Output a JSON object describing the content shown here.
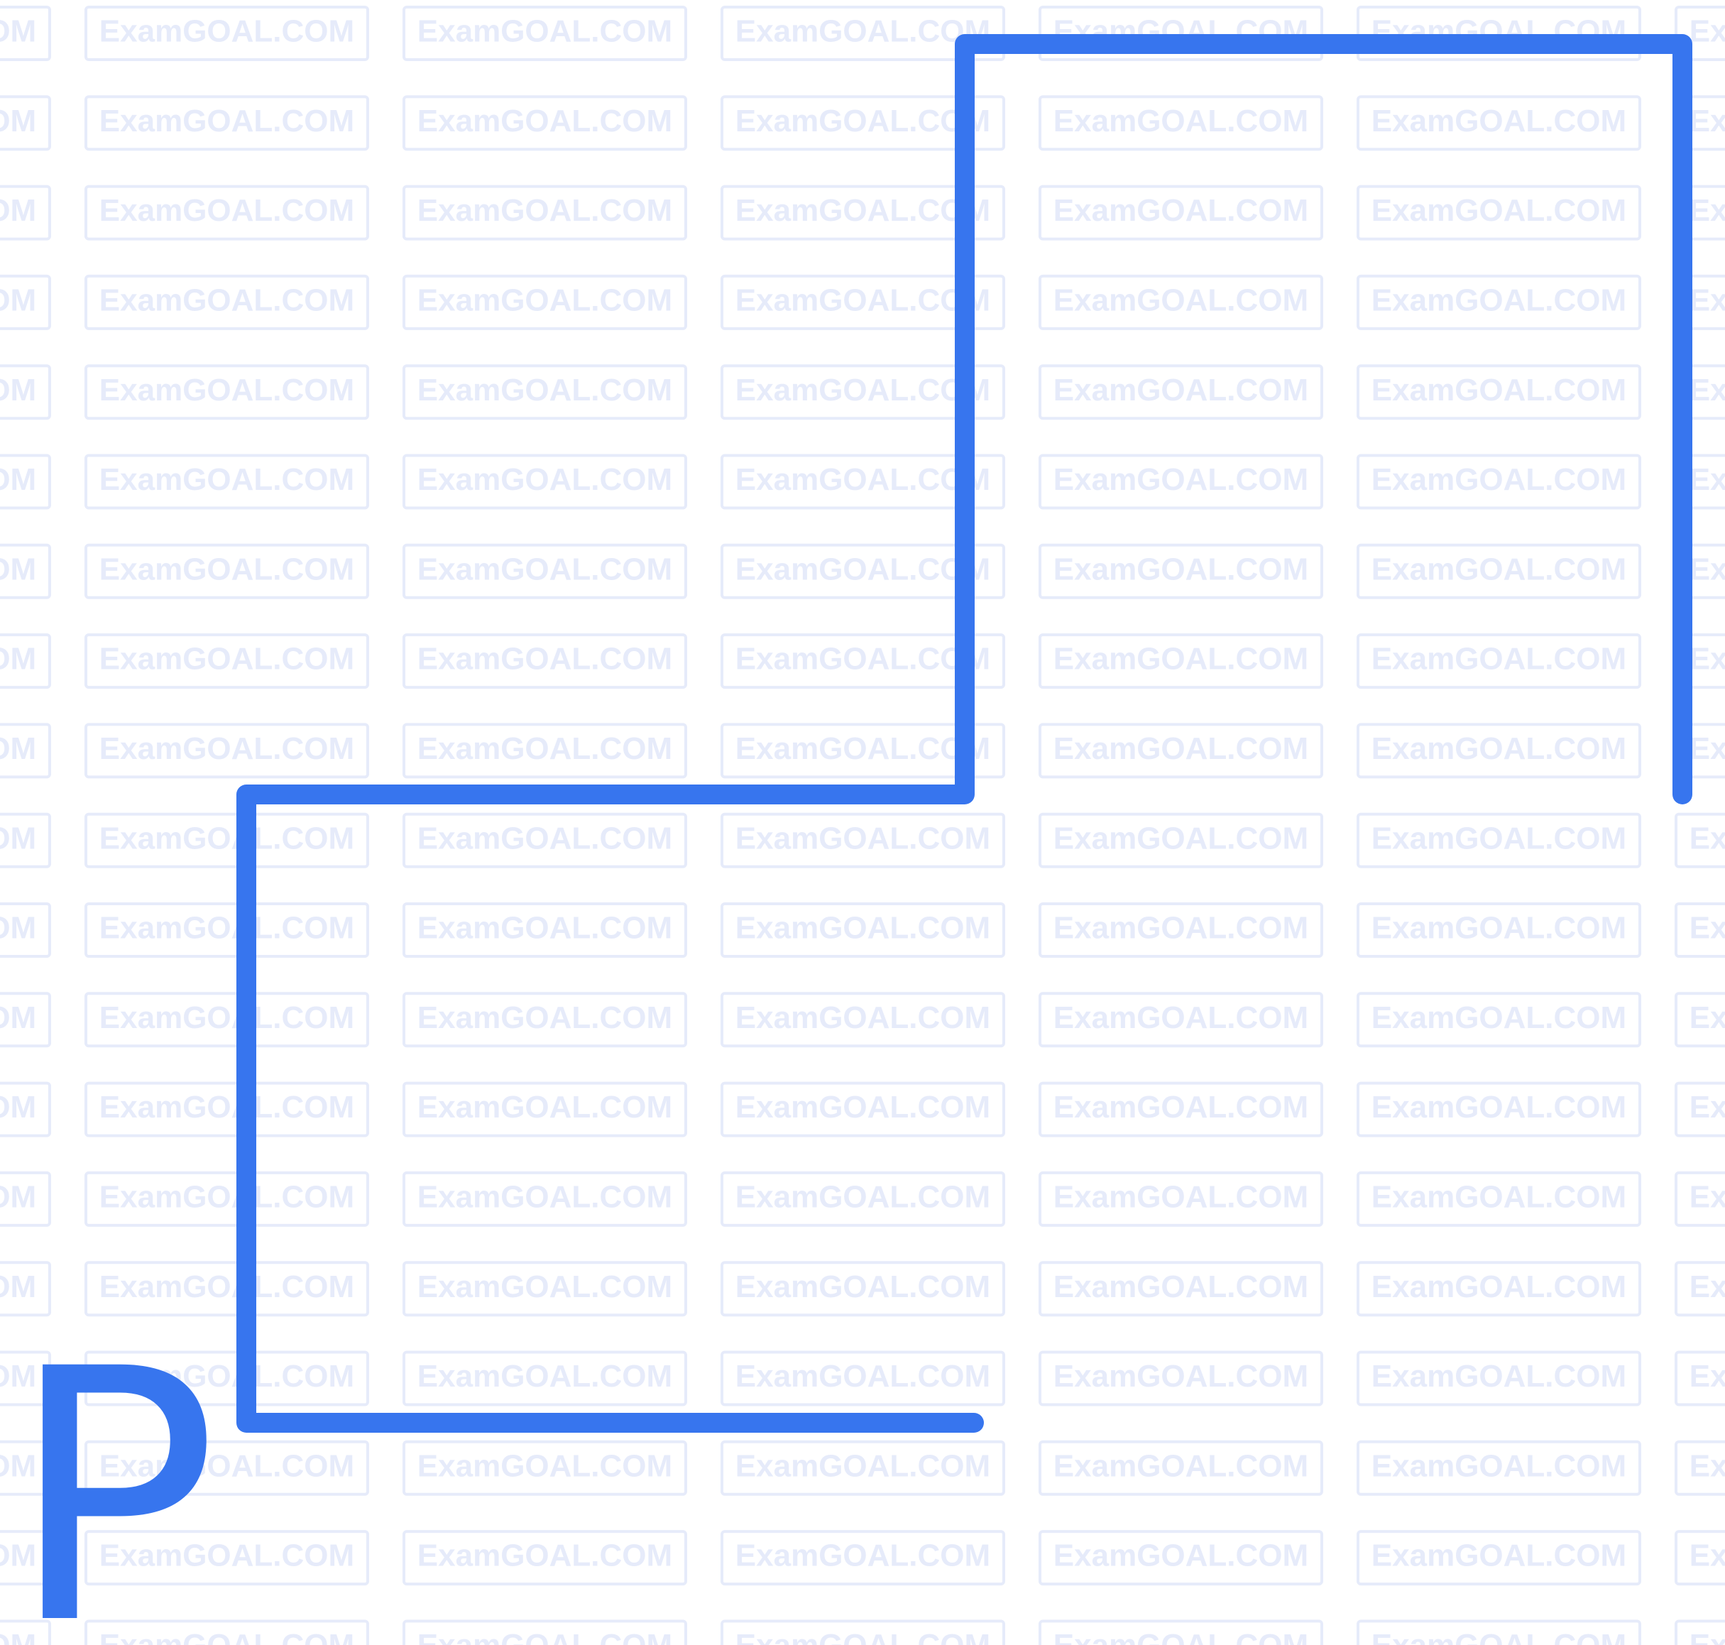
{
  "watermark": "ExamGOAL.COM",
  "label": "P"
}
